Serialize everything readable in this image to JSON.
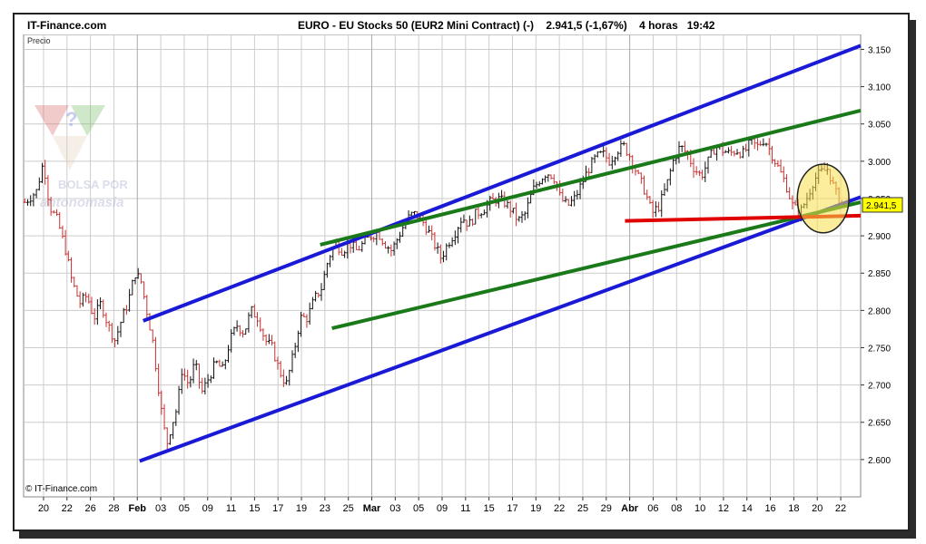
{
  "header": {
    "site": "IT-Finance.com",
    "title": "EURO - EU Stocks 50 (EUR2 Mini Contract) (-)    2.941,5 (-1,67%)    4 horas   19:42"
  },
  "watermark": {
    "line1": "BOLSA POR",
    "line2": "antonomasia"
  },
  "footer": {
    "copyright": "© IT-Finance.com"
  },
  "chart_data": {
    "type": "candlestick",
    "title": "EURO - EU Stocks 50 (EUR2 Mini Contract) (-)",
    "last_price_label": "2.941,5",
    "change_label": "(-1,67%)",
    "interval_label": "4 horas",
    "time_label": "19:42",
    "ylabel": "Precio",
    "ylim": [
      2550,
      3170
    ],
    "y_ticks": [
      2600,
      2650,
      2700,
      2750,
      2800,
      2850,
      2900,
      2950,
      3000,
      3050,
      3100,
      3150
    ],
    "y_tick_labels": [
      "2.600",
      "2.650",
      "2.700",
      "2.750",
      "2.800",
      "2.850",
      "2.900",
      "2.950",
      "3.000",
      "3.050",
      "3.100",
      "3.150"
    ],
    "x_ticks": [
      {
        "label": "20",
        "x": 0
      },
      {
        "label": "22",
        "x": 2
      },
      {
        "label": "26",
        "x": 4
      },
      {
        "label": "28",
        "x": 6
      },
      {
        "label": "Feb",
        "x": 8,
        "major": true
      },
      {
        "label": "03",
        "x": 10
      },
      {
        "label": "05",
        "x": 12
      },
      {
        "label": "09",
        "x": 14
      },
      {
        "label": "11",
        "x": 16
      },
      {
        "label": "15",
        "x": 18
      },
      {
        "label": "17",
        "x": 20
      },
      {
        "label": "19",
        "x": 22
      },
      {
        "label": "23",
        "x": 24
      },
      {
        "label": "25",
        "x": 26
      },
      {
        "label": "Mar",
        "x": 28,
        "major": true
      },
      {
        "label": "03",
        "x": 30
      },
      {
        "label": "05",
        "x": 32
      },
      {
        "label": "09",
        "x": 34
      },
      {
        "label": "11",
        "x": 36
      },
      {
        "label": "15",
        "x": 38
      },
      {
        "label": "17",
        "x": 40
      },
      {
        "label": "19",
        "x": 42
      },
      {
        "label": "22",
        "x": 44
      },
      {
        "label": "25",
        "x": 46
      },
      {
        "label": "29",
        "x": 48
      },
      {
        "label": "Abr",
        "x": 50,
        "major": true
      },
      {
        "label": "06",
        "x": 52
      },
      {
        "label": "08",
        "x": 54
      },
      {
        "label": "10",
        "x": 56
      },
      {
        "label": "12",
        "x": 58
      },
      {
        "label": "14",
        "x": 60
      },
      {
        "label": "16",
        "x": 62
      },
      {
        "label": "18",
        "x": 64
      },
      {
        "label": "20",
        "x": 66
      },
      {
        "label": "22",
        "x": 68
      }
    ],
    "xlim": [
      -1.7,
      69.7
    ],
    "price_path": [
      [
        -1.6,
        2945
      ],
      [
        -0.6,
        2960
      ],
      [
        0.0,
        3000
      ],
      [
        0.5,
        2940
      ],
      [
        1.2,
        2920
      ],
      [
        1.9,
        2880
      ],
      [
        2.4,
        2840
      ],
      [
        3.1,
        2810
      ],
      [
        3.7,
        2820
      ],
      [
        4.3,
        2790
      ],
      [
        4.9,
        2810
      ],
      [
        5.5,
        2780
      ],
      [
        6.1,
        2760
      ],
      [
        6.7,
        2790
      ],
      [
        7.2,
        2810
      ],
      [
        7.8,
        2850
      ],
      [
        8.3,
        2840
      ],
      [
        8.8,
        2800
      ],
      [
        9.3,
        2760
      ],
      [
        9.7,
        2710
      ],
      [
        10.1,
        2660
      ],
      [
        10.5,
        2620
      ],
      [
        10.9,
        2645
      ],
      [
        11.4,
        2670
      ],
      [
        11.8,
        2720
      ],
      [
        12.4,
        2700
      ],
      [
        12.9,
        2730
      ],
      [
        13.5,
        2690
      ],
      [
        14.1,
        2710
      ],
      [
        14.7,
        2730
      ],
      [
        15.3,
        2720
      ],
      [
        15.9,
        2760
      ],
      [
        16.5,
        2780
      ],
      [
        17.1,
        2770
      ],
      [
        17.7,
        2800
      ],
      [
        18.3,
        2790
      ],
      [
        18.9,
        2760
      ],
      [
        19.5,
        2750
      ],
      [
        20.1,
        2720
      ],
      [
        20.7,
        2700
      ],
      [
        21.3,
        2740
      ],
      [
        21.9,
        2790
      ],
      [
        22.5,
        2790
      ],
      [
        23.1,
        2815
      ],
      [
        23.7,
        2830
      ],
      [
        24.3,
        2870
      ],
      [
        24.9,
        2890
      ],
      [
        25.5,
        2880
      ],
      [
        26.1,
        2890
      ],
      [
        26.7,
        2880
      ],
      [
        27.3,
        2890
      ],
      [
        27.9,
        2900
      ],
      [
        28.5,
        2905
      ],
      [
        29.1,
        2890
      ],
      [
        29.7,
        2880
      ],
      [
        30.3,
        2900
      ],
      [
        30.9,
        2920
      ],
      [
        31.5,
        2930
      ],
      [
        32.1,
        2925
      ],
      [
        32.7,
        2910
      ],
      [
        33.3,
        2890
      ],
      [
        33.9,
        2870
      ],
      [
        34.5,
        2890
      ],
      [
        35.1,
        2905
      ],
      [
        35.7,
        2925
      ],
      [
        36.3,
        2915
      ],
      [
        36.9,
        2930
      ],
      [
        37.5,
        2935
      ],
      [
        38.1,
        2945
      ],
      [
        38.7,
        2950
      ],
      [
        39.3,
        2945
      ],
      [
        39.9,
        2935
      ],
      [
        40.5,
        2920
      ],
      [
        41.1,
        2930
      ],
      [
        41.7,
        2960
      ],
      [
        42.3,
        2975
      ],
      [
        42.9,
        2985
      ],
      [
        43.5,
        2980
      ],
      [
        44.1,
        2950
      ],
      [
        44.7,
        2940
      ],
      [
        45.3,
        2950
      ],
      [
        45.9,
        2970
      ],
      [
        46.5,
        2990
      ],
      [
        47.1,
        3005
      ],
      [
        47.7,
        3010
      ],
      [
        48.3,
        3000
      ],
      [
        48.9,
        3015
      ],
      [
        49.5,
        3020
      ],
      [
        50.1,
        3005
      ],
      [
        50.7,
        2980
      ],
      [
        51.3,
        2960
      ],
      [
        51.9,
        2930
      ],
      [
        52.5,
        2940
      ],
      [
        53.1,
        2965
      ],
      [
        53.7,
        3000
      ],
      [
        54.3,
        3020
      ],
      [
        54.9,
        3010
      ],
      [
        55.5,
        2990
      ],
      [
        56.1,
        2980
      ],
      [
        56.7,
        3000
      ],
      [
        57.3,
        3020
      ],
      [
        57.9,
        3015
      ],
      [
        58.5,
        3010
      ],
      [
        59.1,
        3015
      ],
      [
        59.7,
        3010
      ],
      [
        60.3,
        3025
      ],
      [
        60.9,
        3020
      ],
      [
        61.5,
        3030
      ],
      [
        62.1,
        3010
      ],
      [
        62.7,
        2990
      ],
      [
        63.3,
        2970
      ],
      [
        63.9,
        2940
      ],
      [
        64.5,
        2930
      ],
      [
        65.1,
        2950
      ],
      [
        65.7,
        2975
      ],
      [
        66.3,
        2985
      ],
      [
        66.9,
        2990
      ],
      [
        67.5,
        2960
      ],
      [
        68.1,
        2941.5
      ]
    ],
    "trendlines": [
      {
        "color": "#1a1ad6",
        "x1": 8.5,
        "y1": 2786,
        "x2": 69.7,
        "y2": 3155
      },
      {
        "color": "#1a1ad6",
        "x1": 8.2,
        "y1": 2598,
        "x2": 69.7,
        "y2": 2952
      },
      {
        "color": "#1a7a1a",
        "x1": 23.6,
        "y1": 2888,
        "x2": 69.7,
        "y2": 3068
      },
      {
        "color": "#1a7a1a",
        "x1": 24.6,
        "y1": 2776,
        "x2": 69.7,
        "y2": 2945
      },
      {
        "color": "#e00000",
        "x1": 49.6,
        "y1": 2920,
        "x2": 69.7,
        "y2": 2927
      }
    ],
    "highlight_ellipse": {
      "cx": 66.5,
      "cy": 2950,
      "rx": 2.2,
      "ry": 46,
      "fill": "#f5e04a",
      "stroke": "#222222"
    },
    "last_price": 2941.5,
    "colors": {
      "up": "#111111",
      "down": "#c83232",
      "grid": "#cccccc",
      "label_bg": "#ffff00"
    }
  }
}
